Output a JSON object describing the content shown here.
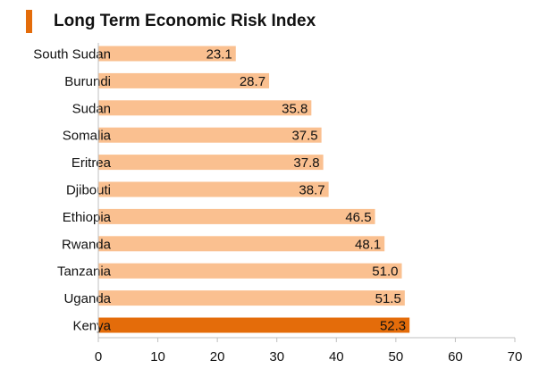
{
  "chart_data": {
    "type": "bar",
    "orientation": "horizontal",
    "title": "Long Term Economic Risk Index",
    "xlabel": "",
    "ylabel": "",
    "categories": [
      "South Sudan",
      "Burundi",
      "Sudan",
      "Somalia",
      "Eritrea",
      "Djibouti",
      "Ethiopia",
      "Rwanda",
      "Tanzania",
      "Uganda",
      "Kenya"
    ],
    "values": [
      23.1,
      28.7,
      35.8,
      37.5,
      37.8,
      38.7,
      46.5,
      48.1,
      51.0,
      51.5,
      52.3
    ],
    "data_labels": [
      "23.1",
      "28.7",
      "35.8",
      "37.5",
      "37.8",
      "38.7",
      "46.5",
      "48.1",
      "51.0",
      "51.5",
      "52.3"
    ],
    "xlim": [
      0,
      70
    ],
    "xticks": [
      0,
      10,
      20,
      30,
      40,
      50,
      60,
      70
    ],
    "grid": false,
    "legend": "none",
    "highlight_category": "Kenya",
    "colors": {
      "bar": "#fac090",
      "highlight": "#e46c0a",
      "accent": "#e46c0a",
      "axis": "#bfbfbf"
    }
  }
}
